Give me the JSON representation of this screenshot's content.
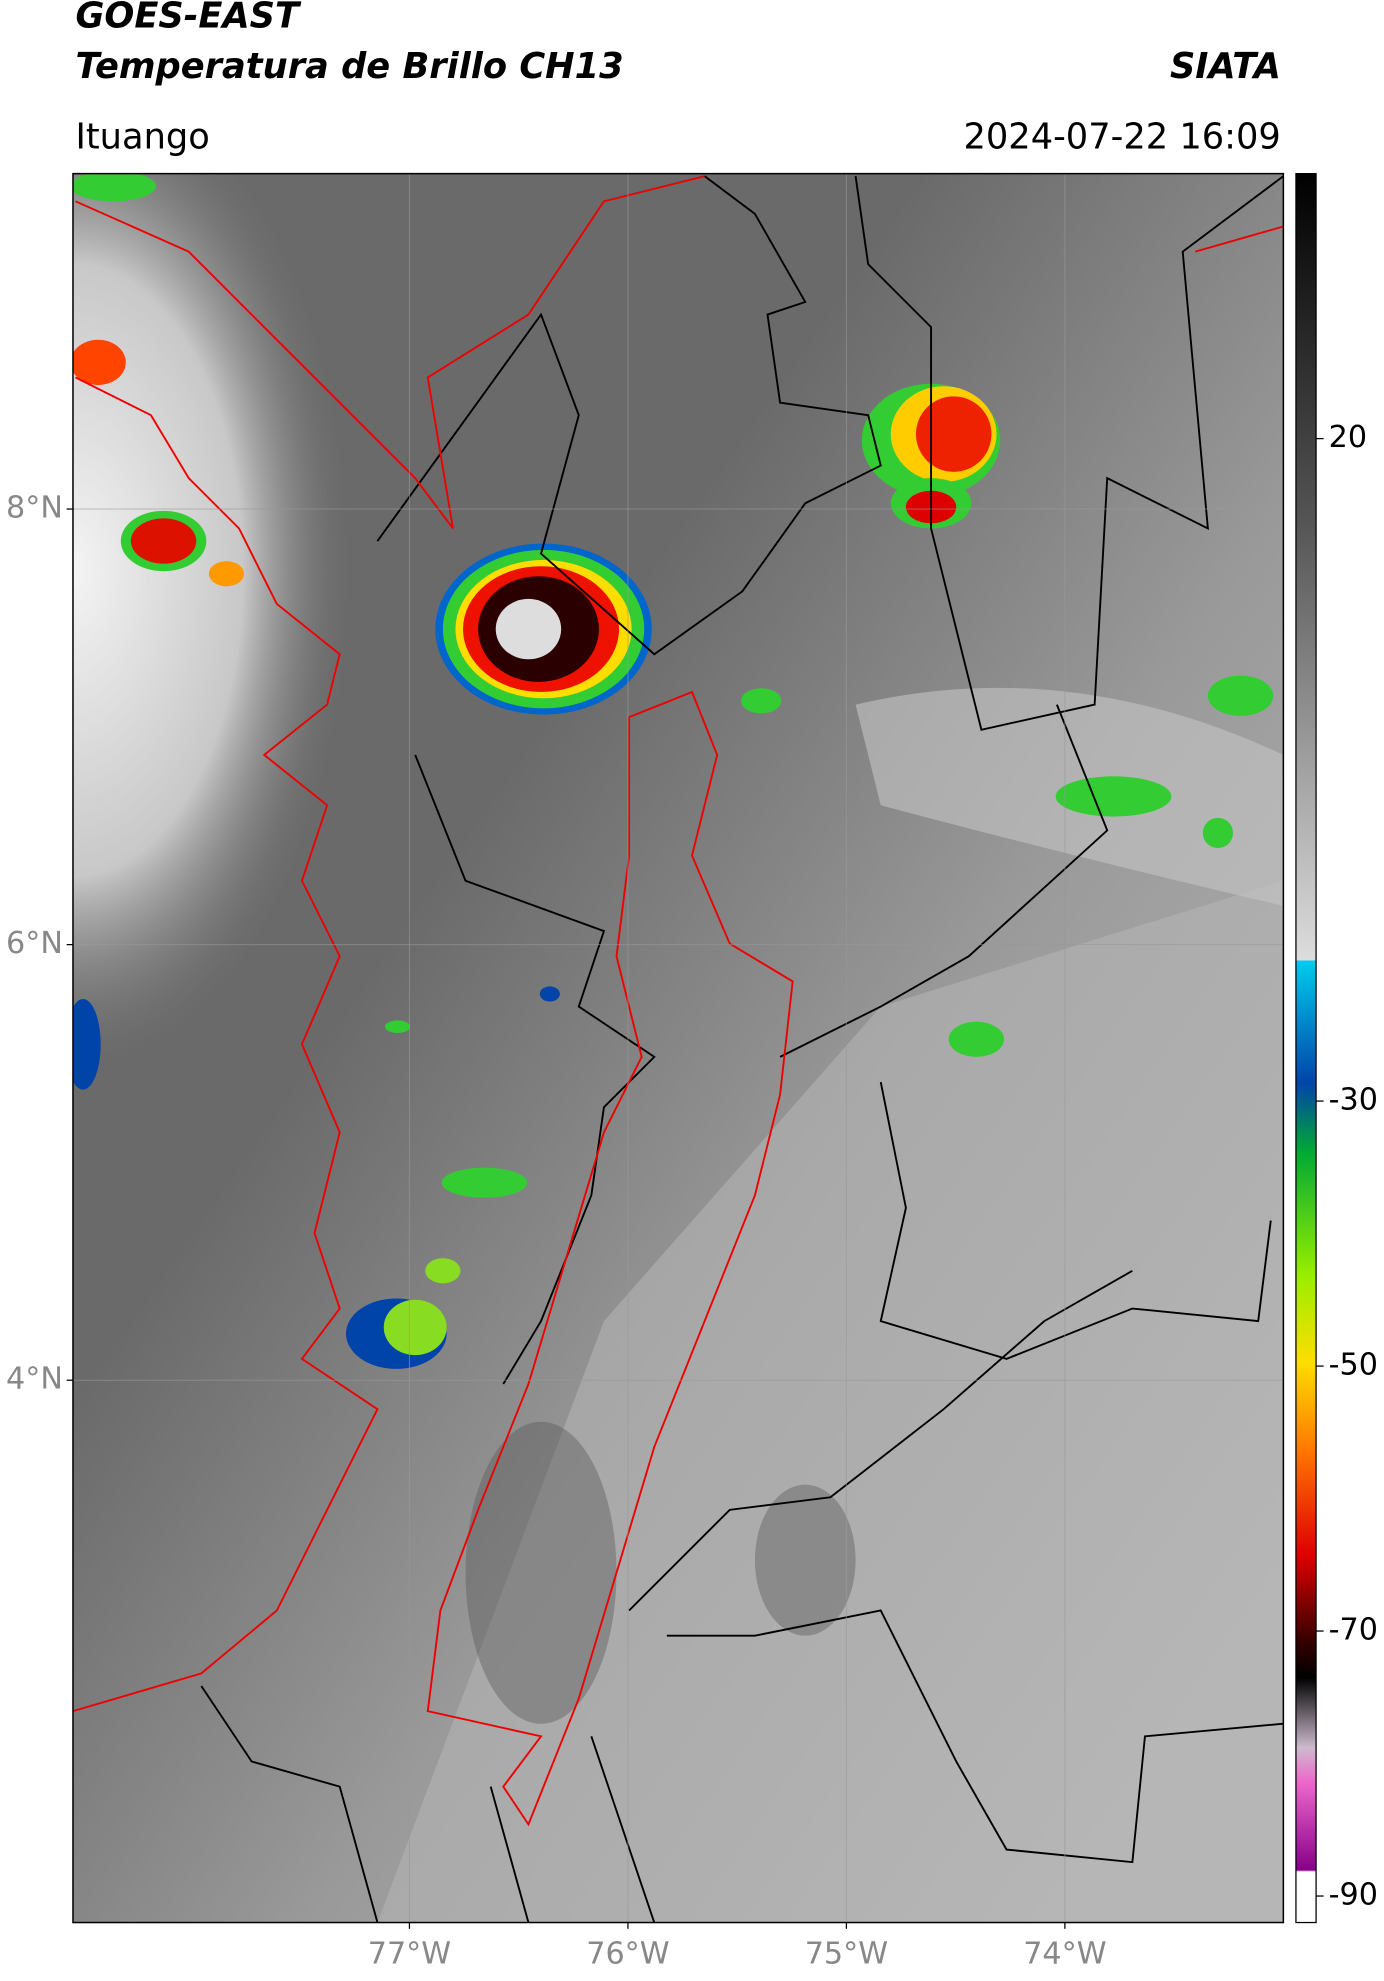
{
  "header": {
    "satellite": "GOES-EAST",
    "product": "Temperatura de Brillo CH13",
    "org": "SIATA",
    "location": "Ituango",
    "datetime": "2024-07-22 16:09"
  },
  "map": {
    "xlim": [
      -78.54,
      -73.0
    ],
    "ylim": [
      1.51,
      9.54
    ],
    "grid": true,
    "xticks": [
      {
        "value": -77,
        "label": "77°W"
      },
      {
        "value": -76,
        "label": "76°W"
      },
      {
        "value": -75,
        "label": "75°W"
      },
      {
        "value": -74,
        "label": "74°W"
      }
    ],
    "yticks": [
      {
        "value": 8,
        "label": "8°N"
      },
      {
        "value": 6,
        "label": "6°N"
      },
      {
        "value": 4,
        "label": "4°N"
      }
    ]
  },
  "colorbar": {
    "clim": [
      -92,
      40
    ],
    "ticks": [
      20,
      -30,
      -50,
      -70,
      -90
    ]
  }
}
